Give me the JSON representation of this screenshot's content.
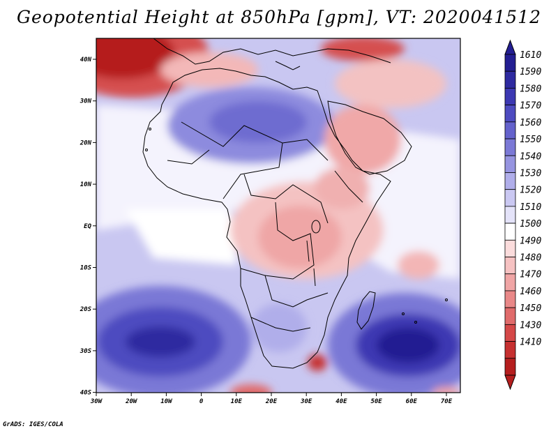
{
  "title": "Geopotential Height at 850hPa [gpm], VT: 2020041512",
  "credit": "GrADS: IGES/COLA",
  "map": {
    "lon_labels": [
      "30W",
      "20W",
      "10W",
      "0",
      "10E",
      "20E",
      "30E",
      "40E",
      "50E",
      "60E",
      "70E"
    ],
    "lat_labels": [
      "40N",
      "30N",
      "20N",
      "10N",
      "EQ",
      "10S",
      "20S",
      "30S",
      "40S"
    ]
  },
  "colorbar": {
    "labels": [
      "1610",
      "1590",
      "1580",
      "1570",
      "1560",
      "1550",
      "1540",
      "1530",
      "1520",
      "1510",
      "1500",
      "1490",
      "1480",
      "1470",
      "1460",
      "1450",
      "1430",
      "1410"
    ],
    "colors": [
      "#231e92",
      "#2e2aa0",
      "#3c38b2",
      "#4d4bc0",
      "#6462cc",
      "#7b79d6",
      "#9694e0",
      "#b0aeea",
      "#cac8f2",
      "#e4e3f9",
      "#ffffff",
      "#fbdcdc",
      "#f6c2c2",
      "#f0a5a5",
      "#e98888",
      "#e06b6b",
      "#d54848",
      "#c63030",
      "#b51e1e"
    ]
  }
}
